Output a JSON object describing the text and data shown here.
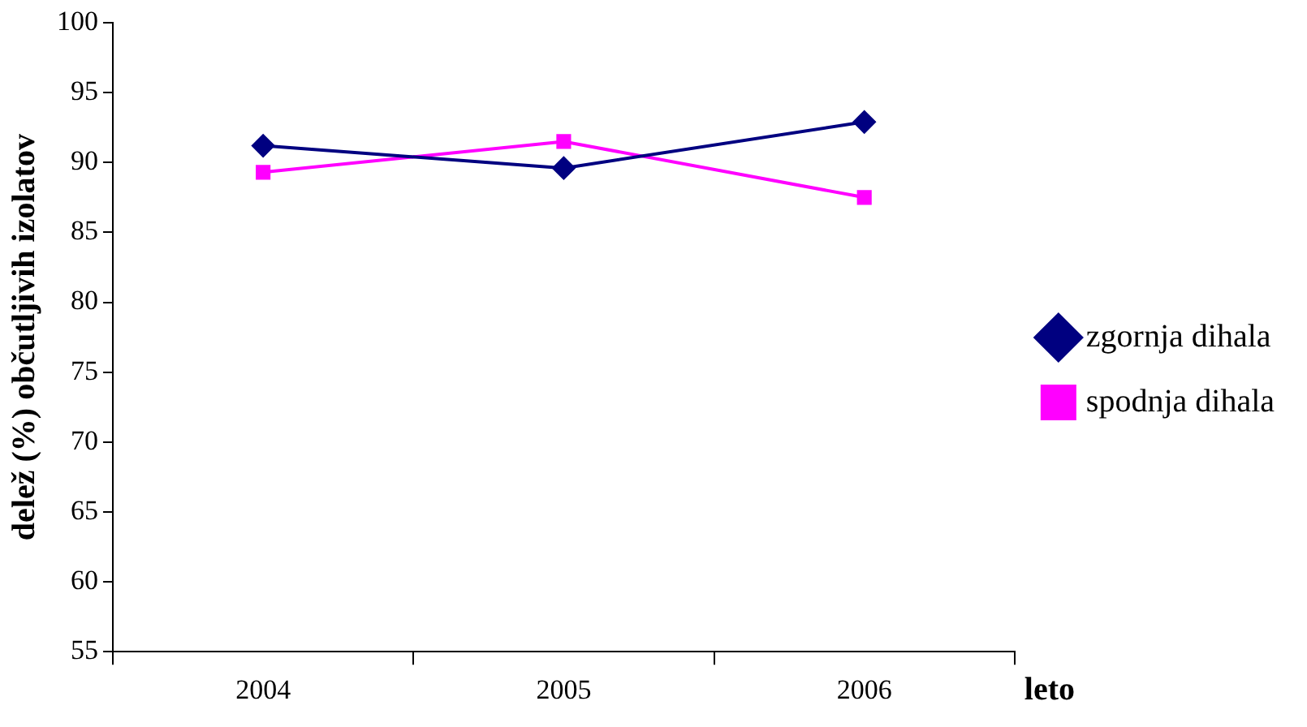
{
  "chart_data": {
    "type": "line",
    "xlabel": "leto",
    "ylabel": "delež (%) občutljivih izolatov",
    "categories": [
      "2004",
      "2005",
      "2006"
    ],
    "series": [
      {
        "name": "zgornja dihala",
        "color": "#000080",
        "marker": "diamond",
        "values": [
          91.2,
          89.6,
          92.9
        ]
      },
      {
        "name": "spodnja dihala",
        "color": "#ff00ff",
        "marker": "square",
        "values": [
          89.3,
          91.5,
          87.5
        ]
      }
    ],
    "ylim": [
      55,
      100
    ],
    "yticks": [
      55,
      60,
      65,
      70,
      75,
      80,
      85,
      90,
      95,
      100
    ],
    "grid": false,
    "legend": "right"
  }
}
